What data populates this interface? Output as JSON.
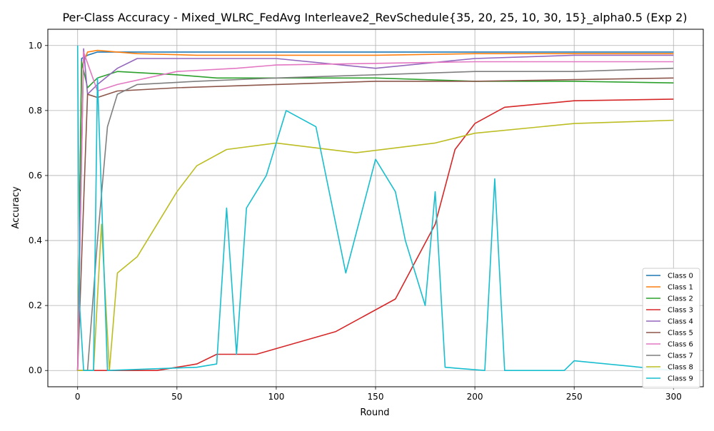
{
  "chart_data": {
    "type": "line",
    "title": "Per-Class Accuracy - Mixed_WLRC_FedAvg Interleave2_RevSchedule{35, 20, 25, 10, 30, 15}_alpha0.5 (Exp 2)",
    "xlabel": "Round",
    "ylabel": "Accuracy",
    "xlim": [
      -15,
      315
    ],
    "ylim": [
      -0.05,
      1.05
    ],
    "xticks": [
      0,
      50,
      100,
      150,
      200,
      250,
      300
    ],
    "yticks": [
      0.0,
      0.2,
      0.4,
      0.6,
      0.8,
      1.0
    ],
    "grid": true,
    "legend_position": "lower right",
    "series": [
      {
        "name": "Class 0",
        "color": "#1f77b4",
        "x": [
          0,
          2,
          5,
          10,
          20,
          30,
          60,
          100,
          150,
          200,
          250,
          300
        ],
        "y": [
          0.0,
          0.96,
          0.97,
          0.98,
          0.98,
          0.98,
          0.98,
          0.98,
          0.98,
          0.98,
          0.98,
          0.98
        ]
      },
      {
        "name": "Class 1",
        "color": "#ff7f0e",
        "x": [
          0,
          2,
          5,
          10,
          20,
          30,
          60,
          100,
          150,
          200,
          250,
          300
        ],
        "y": [
          0.0,
          0.93,
          0.98,
          0.985,
          0.98,
          0.975,
          0.97,
          0.97,
          0.97,
          0.975,
          0.975,
          0.975
        ]
      },
      {
        "name": "Class 2",
        "color": "#2ca02c",
        "x": [
          0,
          2,
          5,
          10,
          20,
          50,
          70,
          100,
          150,
          200,
          250,
          300
        ],
        "y": [
          0.0,
          0.95,
          0.87,
          0.9,
          0.92,
          0.91,
          0.9,
          0.9,
          0.9,
          0.89,
          0.89,
          0.885
        ]
      },
      {
        "name": "Class 3",
        "color": "#d62728",
        "x": [
          0,
          10,
          40,
          60,
          70,
          90,
          130,
          160,
          180,
          190,
          200,
          215,
          250,
          300
        ],
        "y": [
          0.0,
          0.0,
          0.0,
          0.02,
          0.05,
          0.05,
          0.12,
          0.22,
          0.45,
          0.68,
          0.76,
          0.81,
          0.83,
          0.835
        ]
      },
      {
        "name": "Class 4",
        "color": "#9467bd",
        "x": [
          0,
          3,
          5,
          10,
          20,
          30,
          60,
          100,
          150,
          200,
          250,
          300
        ],
        "y": [
          0.0,
          0.99,
          0.85,
          0.88,
          0.93,
          0.96,
          0.96,
          0.96,
          0.93,
          0.96,
          0.97,
          0.97
        ]
      },
      {
        "name": "Class 5",
        "color": "#8c564b",
        "x": [
          0,
          5,
          10,
          20,
          50,
          100,
          150,
          200,
          250,
          300
        ],
        "y": [
          0.0,
          0.85,
          0.84,
          0.86,
          0.87,
          0.88,
          0.89,
          0.89,
          0.895,
          0.9
        ]
      },
      {
        "name": "Class 6",
        "color": "#e377c2",
        "x": [
          0,
          3,
          10,
          20,
          50,
          80,
          100,
          150,
          200,
          250,
          300
        ],
        "y": [
          0.0,
          0.98,
          0.86,
          0.88,
          0.92,
          0.93,
          0.94,
          0.945,
          0.95,
          0.95,
          0.95
        ]
      },
      {
        "name": "Class 7",
        "color": "#7f7f7f",
        "x": [
          0,
          5,
          10,
          15,
          20,
          30,
          60,
          100,
          150,
          200,
          250,
          300
        ],
        "y": [
          0.0,
          0.0,
          0.4,
          0.75,
          0.85,
          0.88,
          0.89,
          0.9,
          0.91,
          0.92,
          0.92,
          0.93
        ]
      },
      {
        "name": "Class 8",
        "color": "#bcbd22",
        "x": [
          0,
          8,
          12,
          16,
          20,
          30,
          40,
          50,
          60,
          75,
          100,
          140,
          180,
          200,
          250,
          300
        ],
        "y": [
          0.0,
          0.0,
          0.45,
          0.0,
          0.3,
          0.35,
          0.45,
          0.55,
          0.63,
          0.68,
          0.7,
          0.67,
          0.7,
          0.73,
          0.76,
          0.77
        ]
      },
      {
        "name": "Class 9",
        "color": "#17becf",
        "x": [
          0,
          1,
          3,
          8,
          10,
          15,
          60,
          70,
          75,
          80,
          85,
          95,
          105,
          120,
          135,
          150,
          160,
          165,
          175,
          180,
          185,
          205,
          210,
          215,
          245,
          250,
          300
        ],
        "y": [
          1.0,
          0.2,
          0.0,
          0.0,
          0.9,
          0.0,
          0.01,
          0.02,
          0.5,
          0.05,
          0.5,
          0.6,
          0.8,
          0.75,
          0.3,
          0.65,
          0.55,
          0.4,
          0.2,
          0.55,
          0.01,
          0.0,
          0.59,
          0.0,
          0.0,
          0.03,
          0.0
        ]
      }
    ]
  }
}
